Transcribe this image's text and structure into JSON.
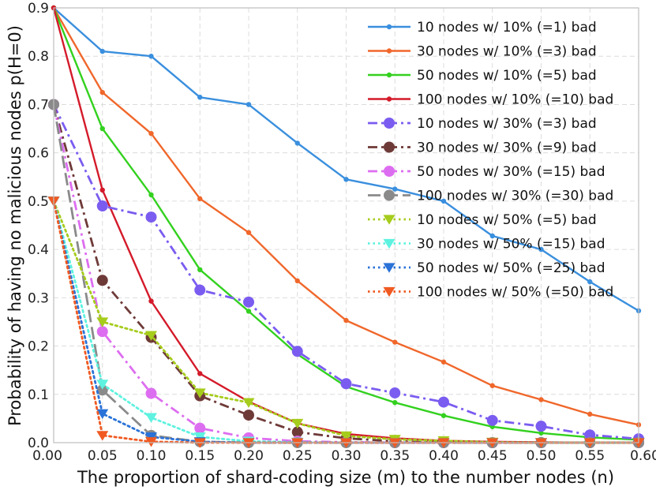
{
  "chart_data": {
    "type": "line",
    "title": "",
    "xlabel": "The proportion of shard-coding size (m) to the number nodes (n)",
    "ylabel": "Probability of having no malicious nodes p(H=0)",
    "xlim": [
      0.0,
      0.6
    ],
    "ylim": [
      0.0,
      0.9
    ],
    "xticks": [
      "0.00",
      "0.05",
      "0.10",
      "0.15",
      "0.20",
      "0.25",
      "0.30",
      "0.35",
      "0.40",
      "0.45",
      "0.50",
      "0.55",
      "0.60"
    ],
    "yticks": [
      "0.0",
      "0.1",
      "0.2",
      "0.3",
      "0.4",
      "0.5",
      "0.6",
      "0.7",
      "0.8",
      "0.9"
    ],
    "grid": true,
    "legend_position": "top-right",
    "series": [
      {
        "name": "10 nodes w/ 10% (=1) bad",
        "color": "#3a8fde",
        "style": "solid",
        "marker": "small-circle",
        "x": [
          0.0,
          0.05,
          0.1,
          0.15,
          0.2,
          0.25,
          0.3,
          0.35,
          0.4,
          0.45,
          0.5,
          0.55,
          0.6
        ],
        "y": [
          0.9,
          0.81,
          0.8,
          0.715,
          0.7,
          0.62,
          0.545,
          0.525,
          0.5,
          0.428,
          0.4,
          0.333,
          0.273
        ]
      },
      {
        "name": "30 nodes w/ 10% (=3) bad",
        "color": "#f0672b",
        "style": "solid",
        "marker": "small-circle",
        "x": [
          0.0,
          0.05,
          0.1,
          0.15,
          0.2,
          0.25,
          0.3,
          0.35,
          0.4,
          0.45,
          0.5,
          0.55,
          0.6
        ],
        "y": [
          0.9,
          0.725,
          0.64,
          0.505,
          0.435,
          0.335,
          0.253,
          0.208,
          0.167,
          0.118,
          0.089,
          0.059,
          0.037
        ]
      },
      {
        "name": "50 nodes w/ 10% (=5) bad",
        "color": "#33d11f",
        "style": "solid",
        "marker": "small-circle",
        "x": [
          0.0,
          0.05,
          0.1,
          0.15,
          0.2,
          0.25,
          0.3,
          0.35,
          0.4,
          0.45,
          0.5,
          0.55,
          0.6
        ],
        "y": [
          0.9,
          0.65,
          0.513,
          0.358,
          0.272,
          0.183,
          0.116,
          0.083,
          0.056,
          0.033,
          0.02,
          0.011,
          0.006
        ]
      },
      {
        "name": "100 nodes w/ 10% (=10) bad",
        "color": "#d41a2a",
        "style": "solid",
        "marker": "small-circle",
        "x": [
          0.0,
          0.05,
          0.1,
          0.15,
          0.2,
          0.25,
          0.3,
          0.35,
          0.4,
          0.45,
          0.5,
          0.55,
          0.6
        ],
        "y": [
          0.9,
          0.523,
          0.293,
          0.143,
          0.085,
          0.04,
          0.018,
          0.009,
          0.004,
          0.002,
          0.001,
          0.0,
          0.0
        ]
      },
      {
        "name": "10 nodes w/ 30% (=3) bad",
        "color": "#7b5cf0",
        "style": "dashdot",
        "marker": "circle",
        "x": [
          0.0,
          0.05,
          0.1,
          0.15,
          0.2,
          0.25,
          0.3,
          0.35,
          0.4,
          0.45,
          0.5,
          0.55,
          0.6
        ],
        "y": [
          0.7,
          0.49,
          0.467,
          0.316,
          0.291,
          0.189,
          0.122,
          0.103,
          0.084,
          0.046,
          0.034,
          0.016,
          0.008
        ]
      },
      {
        "name": "30 nodes w/ 30% (=9) bad",
        "color": "#6e3a38",
        "style": "dashdot",
        "marker": "circle",
        "x": [
          0.0,
          0.05,
          0.1,
          0.15,
          0.2,
          0.25,
          0.3,
          0.35,
          0.4,
          0.45,
          0.5,
          0.55,
          0.6
        ],
        "y": [
          0.7,
          0.336,
          0.218,
          0.097,
          0.057,
          0.022,
          0.009,
          0.003,
          0.001,
          0.0,
          0.0,
          0.0,
          0.0
        ]
      },
      {
        "name": "50 nodes w/ 30% (=15) bad",
        "color": "#dd6df0",
        "style": "dashdot",
        "marker": "circle",
        "x": [
          0.0,
          0.05,
          0.1,
          0.15,
          0.2,
          0.25,
          0.3,
          0.35,
          0.4,
          0.45,
          0.5,
          0.55,
          0.6
        ],
        "y": [
          0.7,
          0.23,
          0.102,
          0.03,
          0.01,
          0.003,
          0.001,
          0.0,
          0.0,
          0.0,
          0.0,
          0.0,
          0.0
        ]
      },
      {
        "name": "100 nodes w/ 30% (=30) bad",
        "color": "#8a8a8a",
        "style": "longdash",
        "marker": "circle",
        "x": [
          0.0,
          0.05,
          0.1,
          0.15,
          0.2,
          0.25,
          0.3,
          0.35,
          0.4,
          0.45,
          0.5,
          0.55,
          0.6
        ],
        "y": [
          0.7,
          0.109,
          0.015,
          0.002,
          0.0,
          0.0,
          0.0,
          0.0,
          0.0,
          0.0,
          0.0,
          0.0,
          0.0
        ]
      },
      {
        "name": "10 nodes w/ 50% (=5) bad",
        "color": "#a6cc1c",
        "style": "dotted",
        "marker": "triangle-down",
        "x": [
          0.0,
          0.05,
          0.1,
          0.15,
          0.2,
          0.25,
          0.3,
          0.35,
          0.4,
          0.45,
          0.5,
          0.55,
          0.6
        ],
        "y": [
          0.5,
          0.25,
          0.222,
          0.103,
          0.083,
          0.04,
          0.014,
          0.007,
          0.004,
          0.001,
          0.0,
          0.0,
          0.0
        ]
      },
      {
        "name": "30 nodes w/ 50% (=15) bad",
        "color": "#5ef2e0",
        "style": "dotted",
        "marker": "triangle-down",
        "x": [
          0.0,
          0.05,
          0.1,
          0.15,
          0.2,
          0.25,
          0.3,
          0.35,
          0.4,
          0.45,
          0.5,
          0.55,
          0.6
        ],
        "y": [
          0.5,
          0.121,
          0.052,
          0.012,
          0.003,
          0.001,
          0.0,
          0.0,
          0.0,
          0.0,
          0.0,
          0.0,
          0.0
        ]
      },
      {
        "name": "50 nodes w/ 50% (=25) bad",
        "color": "#2a72d8",
        "style": "dotted",
        "marker": "triangle-down",
        "x": [
          0.0,
          0.05,
          0.1,
          0.15,
          0.2,
          0.25,
          0.3,
          0.35,
          0.4,
          0.45,
          0.5,
          0.55,
          0.6
        ],
        "y": [
          0.5,
          0.06,
          0.012,
          0.002,
          0.0,
          0.0,
          0.0,
          0.0,
          0.0,
          0.0,
          0.0,
          0.0,
          0.0
        ]
      },
      {
        "name": "100 nodes w/ 50% (=50) bad",
        "color": "#f05a22",
        "style": "dotted",
        "marker": "triangle-down",
        "x": [
          0.0,
          0.05,
          0.1,
          0.15,
          0.2,
          0.25,
          0.3,
          0.35,
          0.4,
          0.45,
          0.5,
          0.55,
          0.6
        ],
        "y": [
          0.5,
          0.015,
          0.002,
          0.0,
          0.0,
          0.0,
          0.0,
          0.0,
          0.0,
          0.0,
          0.0,
          0.0,
          0.0
        ]
      }
    ]
  }
}
